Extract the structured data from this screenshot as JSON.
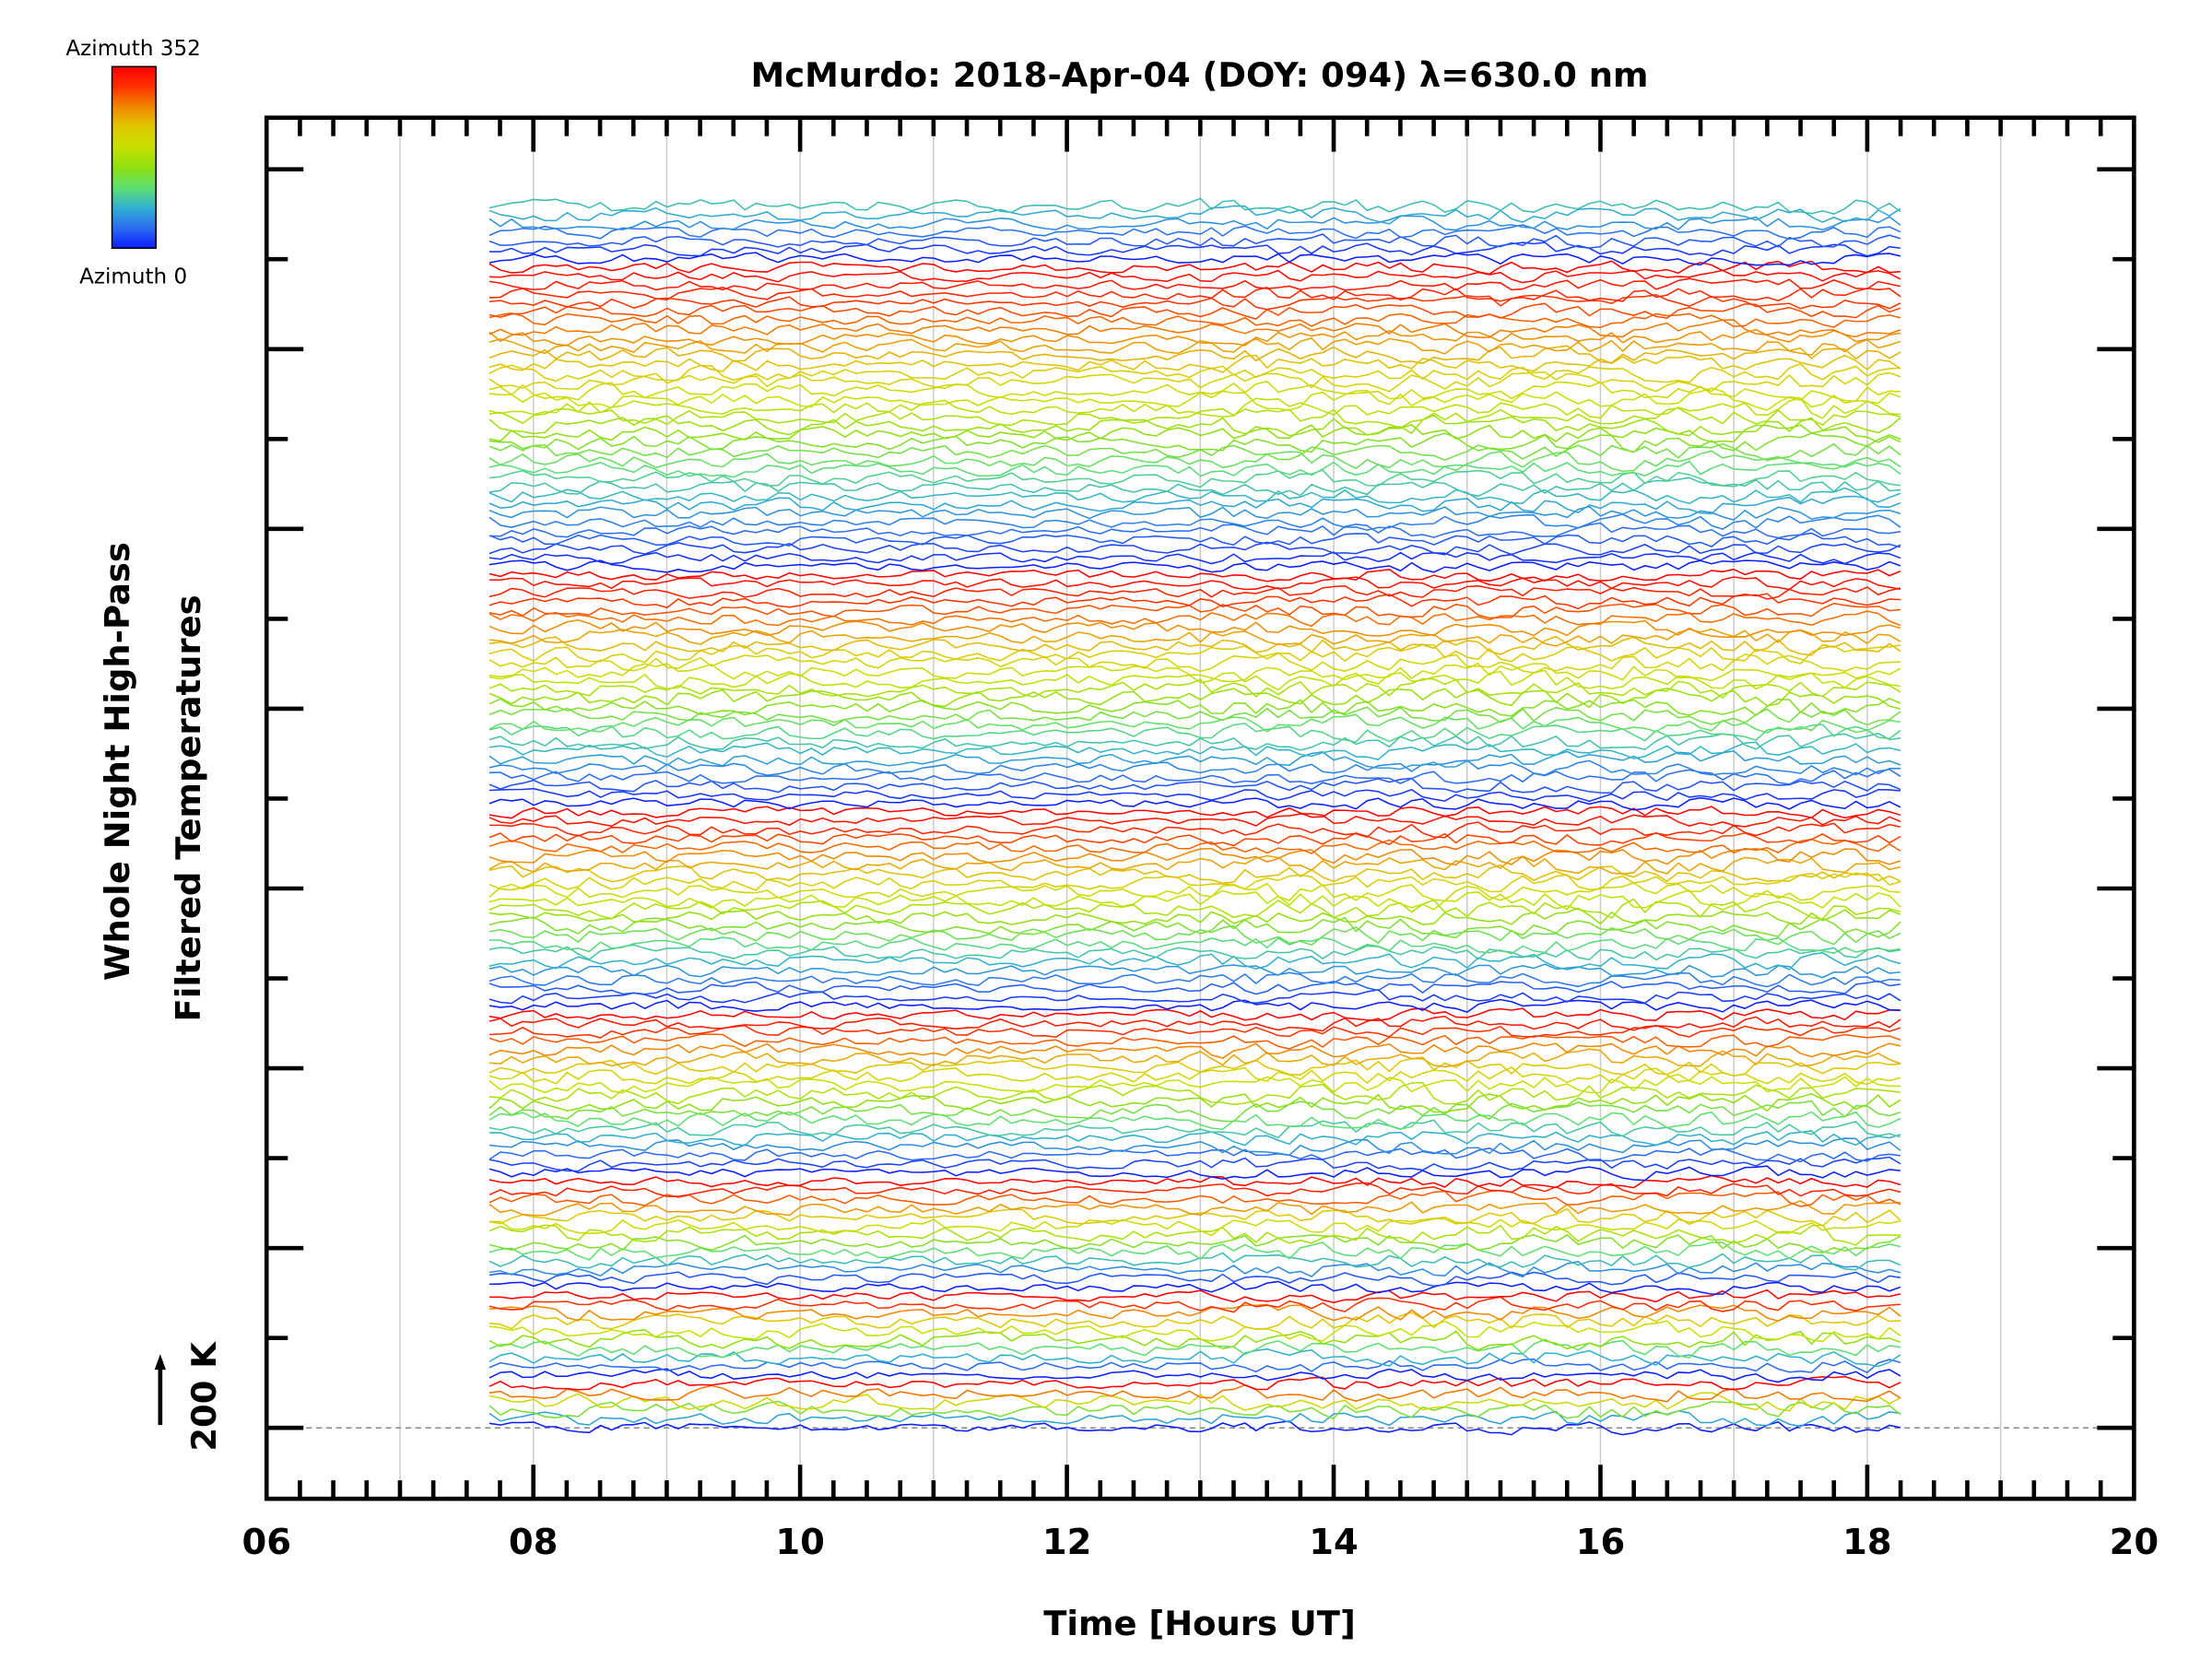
{
  "chart_data": {
    "type": "line",
    "title": "McMurdo: 2018-Apr-04 (DOY: 094) λ=630.0 nm",
    "xlabel": "Time [Hours UT]",
    "ylabel_line1": "Whole Night High-Pass",
    "ylabel_line2": "Filtered Temperatures",
    "scale_label": "200 K",
    "scale_value_K": 200,
    "xlim": [
      6,
      20
    ],
    "xticks": [
      "06",
      "08",
      "10",
      "12",
      "14",
      "16",
      "18",
      "20"
    ],
    "xtick_values": [
      6,
      8,
      10,
      12,
      14,
      16,
      18,
      20
    ],
    "grid": "vertical, hourly",
    "time_range": [
      7.67,
      18.33
    ],
    "time_step_hours": 0.0833,
    "colorbar": {
      "label_top": "Azimuth 352",
      "label_bottom": "Azimuth 0",
      "azimuth_range": [
        0,
        352
      ],
      "colors": [
        "#0a1eff",
        "#2a6cf0",
        "#30b0d0",
        "#5ee070",
        "#8ee010",
        "#c8e000",
        "#e0c800",
        "#f08800",
        "#ff3000",
        "#ff0000"
      ]
    },
    "series_groups_bottom_to_top": [
      {
        "count": 6,
        "azimuth_max": 352
      },
      {
        "count": 10,
        "azimuth_max": 352
      },
      {
        "count": 13,
        "azimuth_max": 352
      },
      {
        "count": 19,
        "azimuth_max": 352
      },
      {
        "count": 23,
        "azimuth_max": 352
      },
      {
        "count": 27,
        "azimuth_max": 352
      },
      {
        "count": 35,
        "azimuth_max": 352
      },
      {
        "count": 7,
        "azimuth_max": 90
      }
    ],
    "series_note": "stacked high-pass filtered temperature traces, one per look direction, colored by azimuth"
  }
}
